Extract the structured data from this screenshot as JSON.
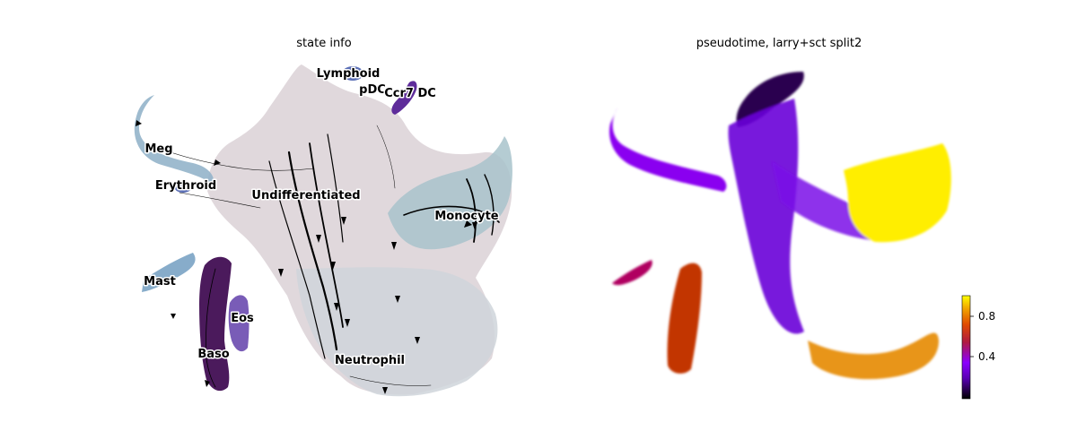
{
  "figure": {
    "panels": [
      {
        "title": "state info"
      },
      {
        "title": "pseudotime, larry+sct split2"
      }
    ]
  },
  "chart_data": [
    {
      "type": "scatter",
      "title": "state info",
      "xlabel": "",
      "ylabel": "",
      "axes_visible": false,
      "grid": false,
      "legend": "on data",
      "overlay": "velocity streamlines with arrowheads",
      "cell_states": [
        {
          "label": "Lymphoid",
          "color": "#5b6fb6"
        },
        {
          "label": "pDC",
          "color": "#c9c0c8"
        },
        {
          "label": "Ccr7 DC",
          "color": "#5e2c9a"
        },
        {
          "label": "Meg",
          "color": "#8fb1c9"
        },
        {
          "label": "Erythroid",
          "color": "#5b6fb6"
        },
        {
          "label": "Undifferentiated",
          "color": "#dcd4d8"
        },
        {
          "label": "Monocyte",
          "color": "#a9c4cc"
        },
        {
          "label": "Mast",
          "color": "#7aa3c4"
        },
        {
          "label": "Eos",
          "color": "#6a4aaf"
        },
        {
          "label": "Baso",
          "color": "#4b1a5c"
        },
        {
          "label": "Neutrophil",
          "color": "#c9d0d6"
        }
      ]
    },
    {
      "type": "scatter",
      "title": "pseudotime, larry+sct split2",
      "xlabel": "",
      "ylabel": "",
      "axes_visible": false,
      "grid": false,
      "colormap": "gnuplot",
      "colorbar": {
        "ticks": [
          0.4,
          0.8
        ],
        "tick_labels": [
          "0.4",
          "0.8"
        ],
        "range": [
          0.0,
          1.0
        ],
        "position": "right"
      }
    }
  ]
}
